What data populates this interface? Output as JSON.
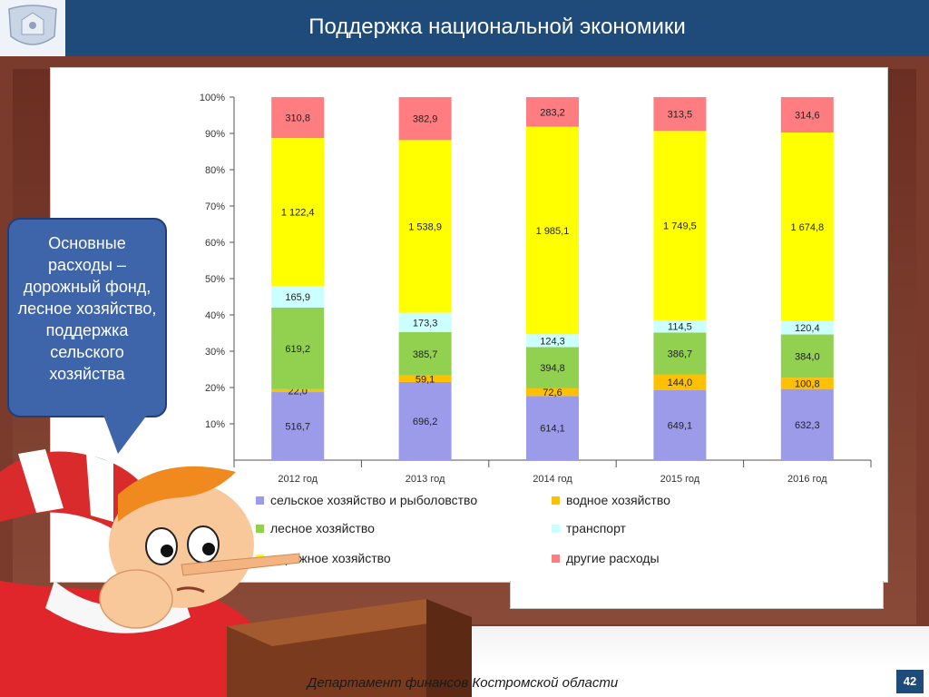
{
  "header": {
    "title": "Поддержка национальной экономики"
  },
  "icons": {
    "logo": "coat-of-arms-icon"
  },
  "bubble": {
    "text": "Основные расходы – дорожный фонд, лесное хозяйство, поддержка сельского хозяйства"
  },
  "footer": {
    "text": "Департамент финансов  Костромской области",
    "page_number": "42"
  },
  "chart_data": {
    "type": "bar",
    "stacked": true,
    "normalized": true,
    "title": "",
    "xlabel": "",
    "ylabel": "",
    "ylim": [
      0,
      100
    ],
    "y_ticks": [
      "10%",
      "20%",
      "30%",
      "40%",
      "50%",
      "60%",
      "70%",
      "80%",
      "90%",
      "100%"
    ],
    "legend_position": "bottom",
    "grid": false,
    "categories": [
      "2012 год",
      "2013 год",
      "2014 год",
      "2015 год",
      "2016 год"
    ],
    "series": [
      {
        "name": "сельское хозяйство и рыболовство",
        "color": "#9b9bea",
        "values": [
          516.7,
          696.2,
          614.1,
          649.1,
          632.3
        ],
        "labels": [
          "516,7",
          "696,2",
          "614,1",
          "649,1",
          "632,3"
        ]
      },
      {
        "name": "водное хозяйство",
        "color": "#ffc000",
        "values": [
          22.0,
          59.1,
          72.6,
          144.0,
          100.8
        ],
        "labels": [
          "22,0",
          "59,1",
          "72,6",
          "144,0",
          "100,8"
        ]
      },
      {
        "name": "лесное хозяйство",
        "color": "#92d050",
        "values": [
          619.2,
          385.7,
          394.8,
          386.7,
          384.0
        ],
        "labels": [
          "619,2",
          "385,7",
          "394,8",
          "386,7",
          "384,0"
        ]
      },
      {
        "name": "транспорт",
        "color": "#ccffff",
        "values": [
          165.9,
          173.3,
          124.3,
          114.5,
          120.4
        ],
        "labels": [
          "165,9",
          "173,3",
          "124,3",
          "114,5",
          "120,4"
        ]
      },
      {
        "name": "дорожное хозяйство",
        "color": "#ffff00",
        "values": [
          1122.4,
          1538.9,
          1985.1,
          1749.5,
          1674.8
        ],
        "labels": [
          "1 122,4",
          "1 538,9",
          "1 985,1",
          "1 749,5",
          "1 674,8"
        ]
      },
      {
        "name": "другие расходы",
        "color": "#ff7c80",
        "values": [
          310.8,
          382.9,
          283.2,
          313.5,
          314.6
        ],
        "labels": [
          "310,8",
          "382,9",
          "283,2",
          "313,5",
          "314,6"
        ]
      }
    ]
  }
}
